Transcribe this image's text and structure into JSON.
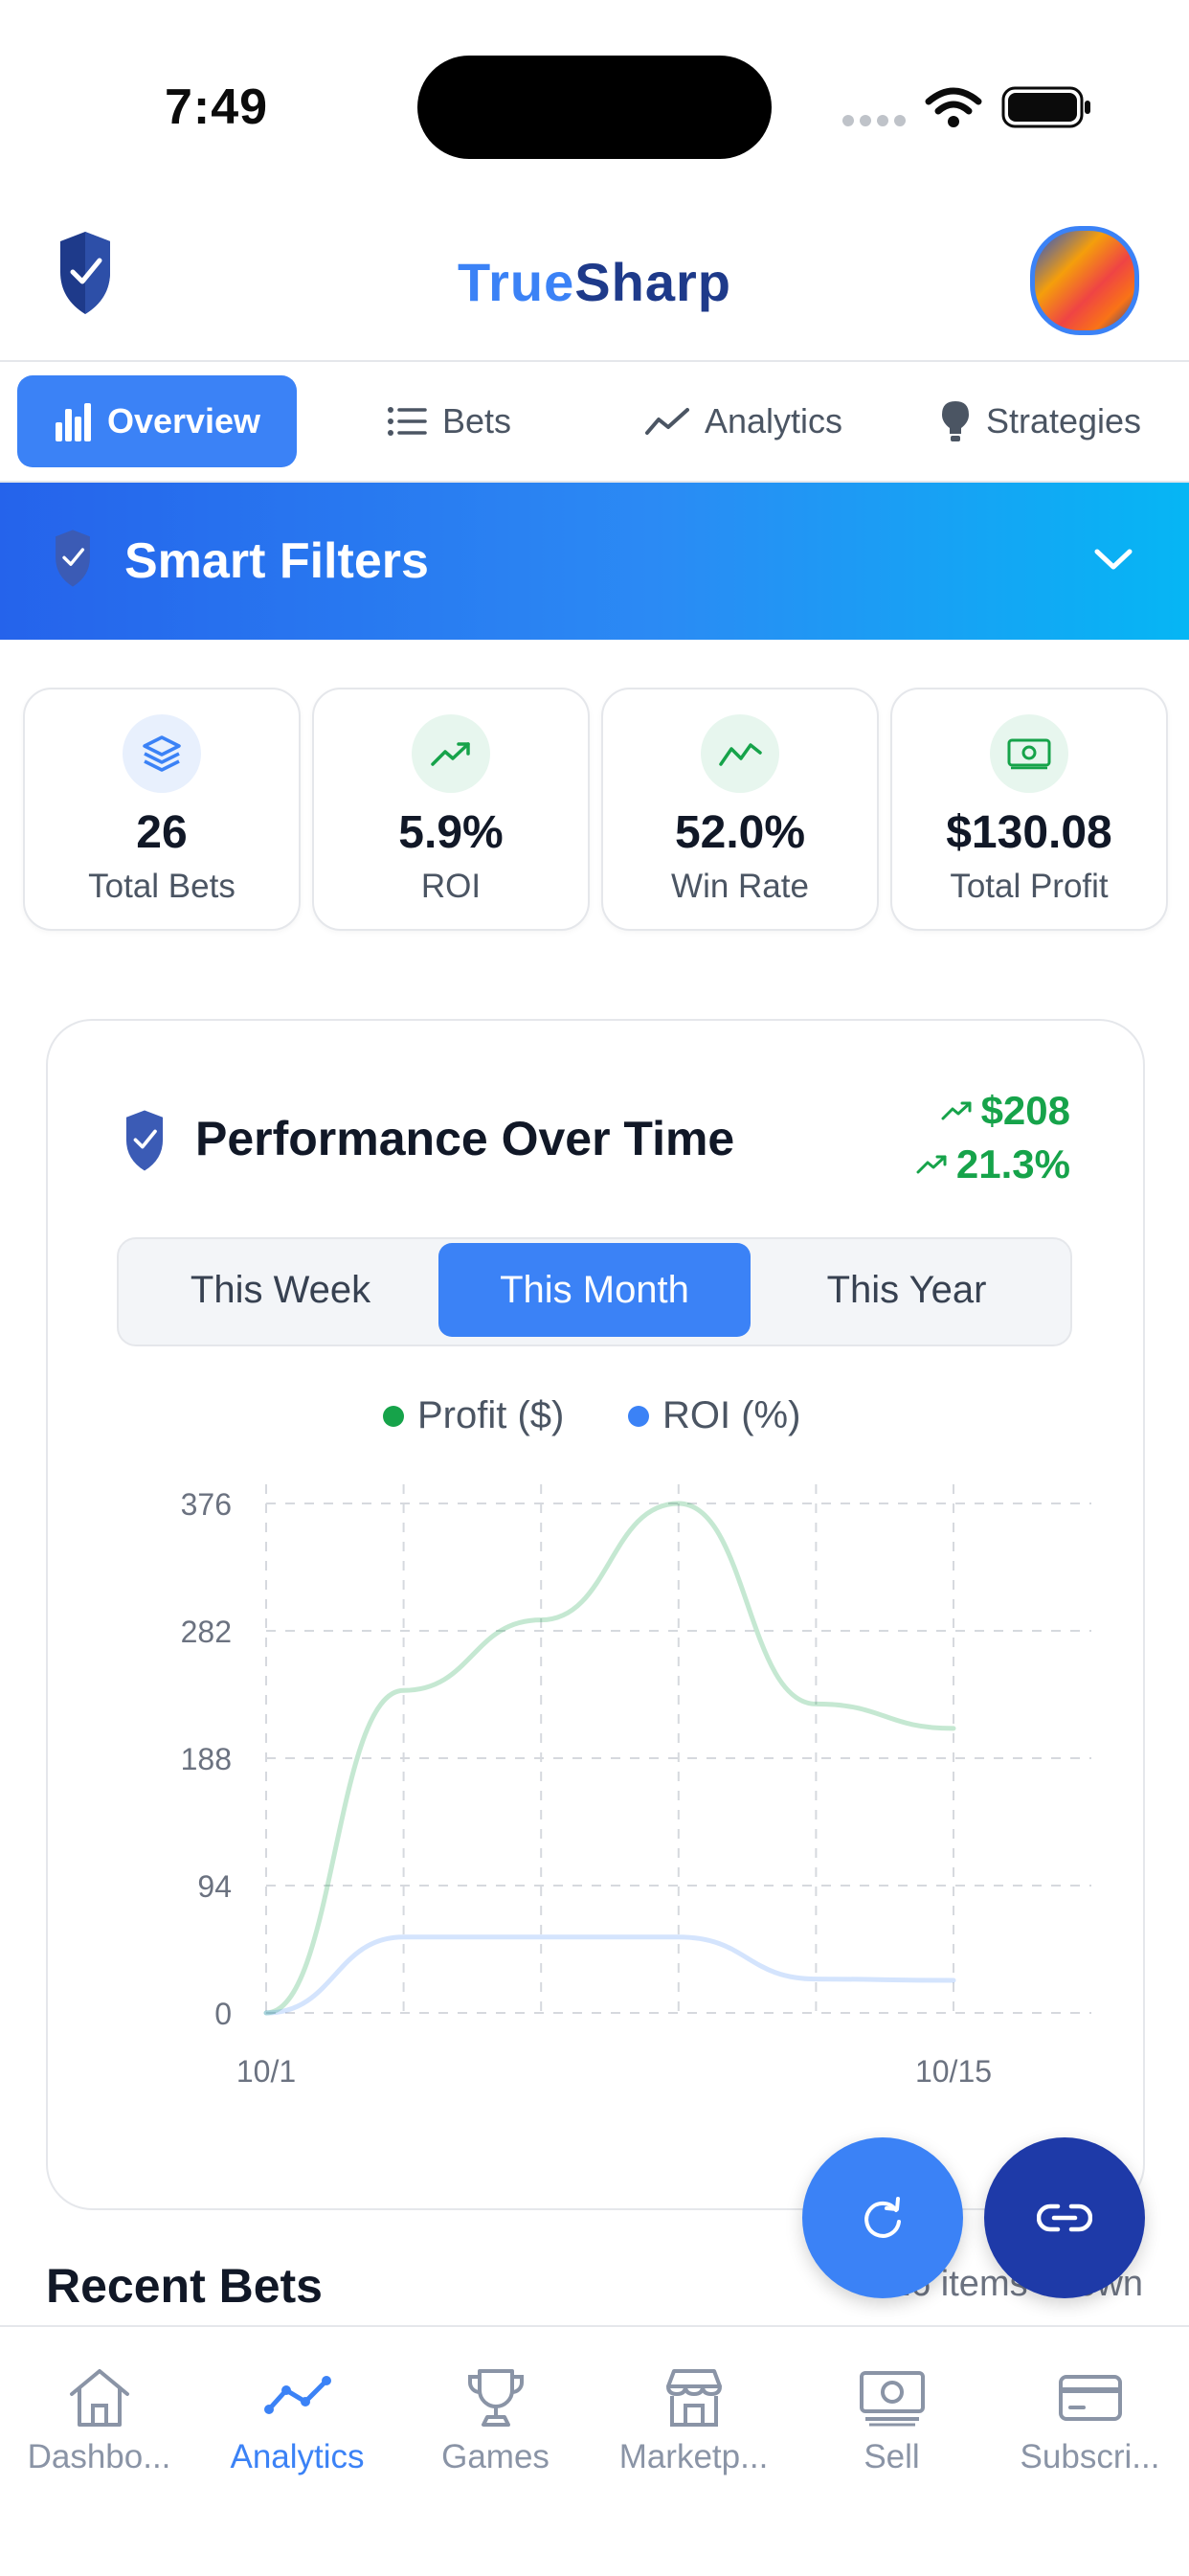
{
  "status_bar": {
    "time": "7:49"
  },
  "header": {
    "brand_part1": "True",
    "brand_part2": "Sharp"
  },
  "tabs": [
    {
      "label": "Overview",
      "icon": "bar-chart-icon",
      "active": true
    },
    {
      "label": "Bets",
      "icon": "list-icon",
      "active": false
    },
    {
      "label": "Analytics",
      "icon": "trend-line-icon",
      "active": false
    },
    {
      "label": "Strategies",
      "icon": "lightbulb-icon",
      "active": false
    }
  ],
  "smart_filters": {
    "title": "Smart Filters"
  },
  "stats": [
    {
      "value": "26",
      "label": "Total Bets",
      "icon": "layers-icon",
      "color": "#3b82f6"
    },
    {
      "value": "5.9%",
      "label": "ROI",
      "icon": "trending-up-icon",
      "color": "#16a34a"
    },
    {
      "value": "52.0%",
      "label": "Win Rate",
      "icon": "activity-icon",
      "color": "#16a34a"
    },
    {
      "value": "$130.08",
      "label": "Total Profit",
      "icon": "cash-icon",
      "color": "#16a34a"
    }
  ],
  "performance": {
    "title": "Performance Over Time",
    "delta_amount": "$208",
    "delta_percent": "21.3%",
    "periods": [
      "This Week",
      "This Month",
      "This Year"
    ],
    "active_period": "This Month",
    "legend": [
      {
        "name": "Profit ($)",
        "color": "#16a34a"
      },
      {
        "name": "ROI (%)",
        "color": "#3b82f6"
      }
    ]
  },
  "chart_data": {
    "type": "line",
    "x_ticks": [
      "10/1",
      "10/15"
    ],
    "y_ticks": [
      "376",
      "282",
      "188",
      "94",
      "0"
    ],
    "ylim": [
      0,
      376
    ],
    "grid": true,
    "legend_position": "top-center",
    "series": [
      {
        "name": "Profit ($)",
        "color": "#16a34a",
        "values": [
          0,
          238,
          290,
          376,
          228,
          210
        ]
      },
      {
        "name": "ROI (%)",
        "color": "#3b82f6",
        "values": [
          0,
          56,
          56,
          56,
          25,
          24
        ]
      }
    ]
  },
  "recent_bets": {
    "title": "Recent Bets",
    "count_text": "26 items shown"
  },
  "bottom_nav": [
    {
      "label": "Dashbo...",
      "icon": "home-icon",
      "active": false
    },
    {
      "label": "Analytics",
      "icon": "analytics-icon",
      "active": true
    },
    {
      "label": "Games",
      "icon": "trophy-icon",
      "active": false
    },
    {
      "label": "Marketp...",
      "icon": "store-icon",
      "active": false
    },
    {
      "label": "Sell",
      "icon": "money-icon",
      "active": false
    },
    {
      "label": "Subscri...",
      "icon": "credit-card-icon",
      "active": false
    }
  ],
  "colors": {
    "accent": "#3b82f6",
    "brand_dark": "#1e3a8a",
    "positive": "#16a34a"
  }
}
